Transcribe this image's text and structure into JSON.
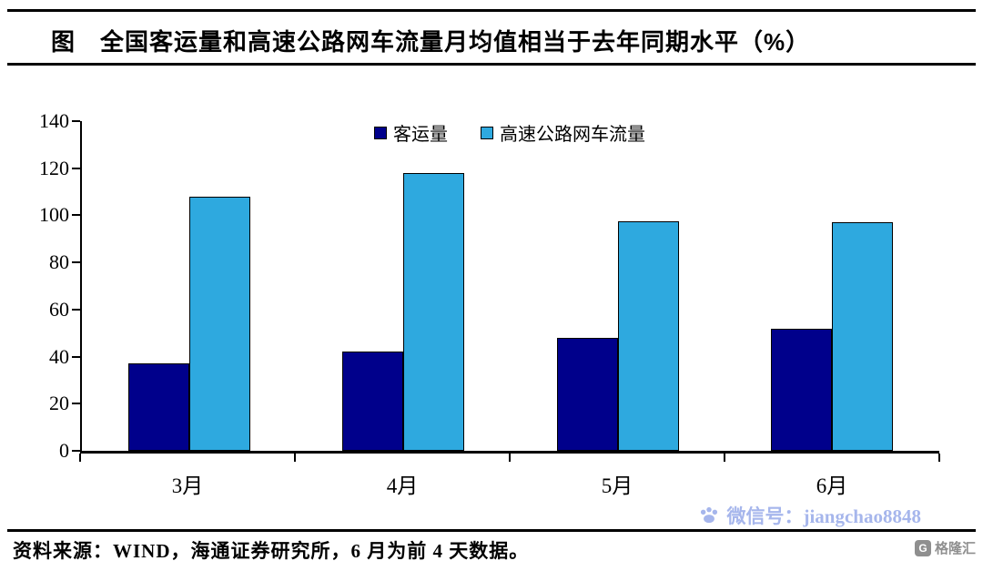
{
  "header": {
    "title": "图　全国客运量和高速公路网车流量月均值相当于去年同期水平（%）"
  },
  "chart_data": {
    "type": "bar",
    "title": "全国客运量和高速公路网车流量月均值相当于去年同期水平（%）",
    "categories": [
      "3月",
      "4月",
      "5月",
      "6月"
    ],
    "series": [
      {
        "name": "客运量",
        "color": "#00008B",
        "values": [
          37,
          42,
          48,
          52
        ]
      },
      {
        "name": "高速公路网车流量",
        "color": "#2EA9DF",
        "values": [
          108,
          118,
          97.5,
          97
        ]
      }
    ],
    "xlabel": "",
    "ylabel": "",
    "ylim": [
      0,
      140
    ],
    "yticks": [
      0,
      20,
      40,
      60,
      80,
      100,
      120,
      140
    ],
    "grid": false,
    "legend_position": "top-center"
  },
  "footer": {
    "source": "资料来源：WIND，海通证券研究所，6 月为前 4 天数据。",
    "watermark": "微信号：jiangchao8848",
    "logo": "格隆汇",
    "logo_letter": "G"
  }
}
